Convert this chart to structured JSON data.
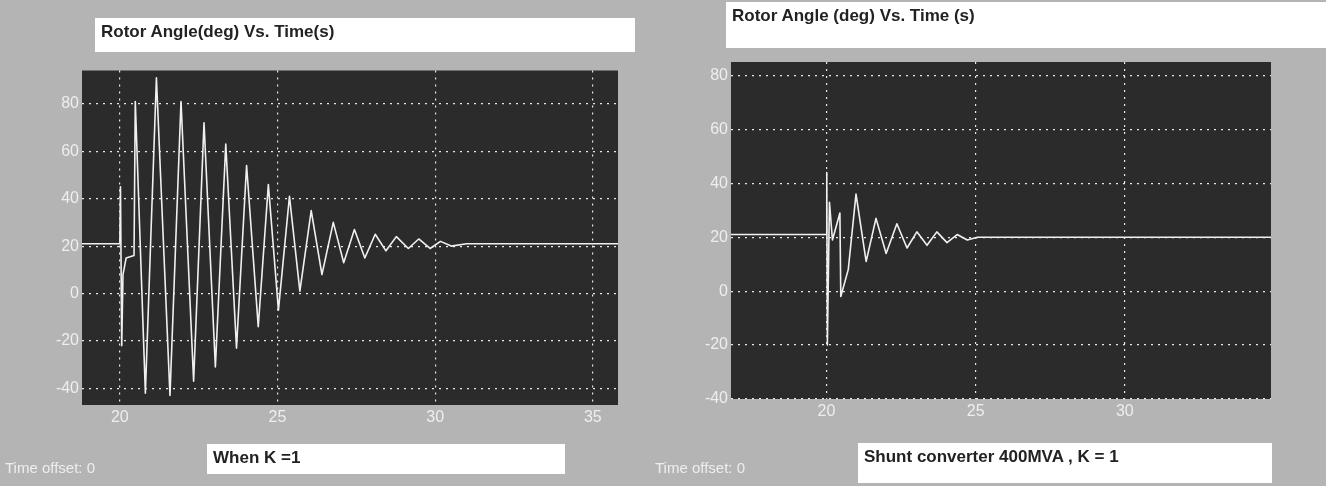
{
  "chart_data": [
    {
      "type": "line",
      "title": "Rotor Angle(deg) Vs. Time(s)",
      "annotations": [
        "When K =1",
        "Time offset:  0"
      ],
      "xlim": [
        18.8,
        35.8
      ],
      "xticks": [
        20,
        25,
        30,
        35
      ],
      "ylim": [
        -47,
        94
      ],
      "yticks": [
        -40,
        -20,
        0,
        20,
        40,
        60,
        80
      ],
      "grid": true,
      "marker": "none",
      "series": [
        {
          "color": "#f0f0f0",
          "x": [
            18.8,
            20,
            20.02,
            20.06,
            20.1,
            20.2,
            20.45,
            20.49,
            20.81,
            21.16,
            21.59,
            21.94,
            22.34,
            22.67,
            23.03,
            23.36,
            23.7,
            24.02,
            24.39,
            24.71,
            25.03,
            25.38,
            25.71,
            26.07,
            26.41,
            26.77,
            27.1,
            27.44,
            27.77,
            28.1,
            28.44,
            28.77,
            29.15,
            29.48,
            29.84,
            30.17,
            30.51,
            31,
            32.2,
            35.8
          ],
          "values": [
            21,
            21,
            45,
            -22,
            8,
            15,
            16,
            81,
            -42,
            91,
            -43,
            81,
            -37,
            72,
            -31,
            63,
            -23,
            54,
            -14,
            46,
            -7,
            41,
            1,
            35,
            8,
            30,
            13,
            27,
            15,
            25,
            18,
            24,
            19,
            23,
            19,
            22,
            20,
            21,
            21,
            21
          ]
        }
      ]
    },
    {
      "type": "line",
      "title": "Rotor Angle (deg) Vs. Time (s)",
      "annotations": [
        "Shunt converter 400MVA , K = 1",
        "Time offset:  0"
      ],
      "xlim": [
        16.8,
        34.9
      ],
      "xticks": [
        20,
        25,
        30
      ],
      "ylim": [
        -40,
        85
      ],
      "yticks": [
        -40,
        -20,
        0,
        20,
        40,
        60,
        80
      ],
      "grid": true,
      "marker": "none",
      "series": [
        {
          "color": "#f0f0f0",
          "x": [
            16.8,
            20,
            20.01,
            20.03,
            20.1,
            20.2,
            20.45,
            20.48,
            20.73,
            20.99,
            21.33,
            21.66,
            22,
            22.36,
            22.7,
            23.03,
            23.37,
            23.7,
            24.04,
            24.38,
            24.72,
            25.06,
            34.9
          ],
          "values": [
            21,
            21,
            44,
            -20,
            33,
            19,
            29,
            -2,
            8,
            36,
            11,
            27,
            14,
            25,
            16,
            22,
            17,
            22,
            18,
            21,
            19,
            20,
            20
          ]
        }
      ]
    }
  ]
}
